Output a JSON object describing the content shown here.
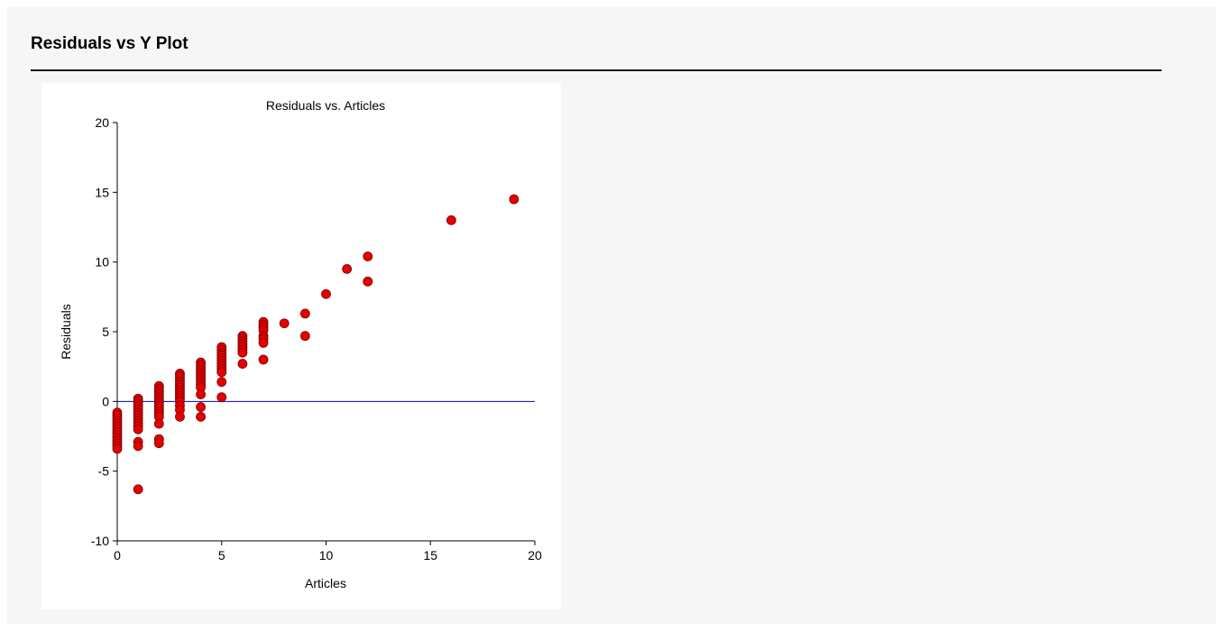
{
  "page": {
    "section_title": "Residuals vs Y Plot"
  },
  "colors": {
    "background": "#f6f6f6",
    "panel": "#ffffff",
    "marker_fill": "#e60000",
    "marker_stroke": "#7a0000",
    "reference_line": "#0000cc"
  },
  "chart_data": {
    "type": "scatter",
    "title": "Residuals vs. Articles",
    "xlabel": "Articles",
    "ylabel": "Residuals",
    "xlim": [
      0,
      20
    ],
    "ylim": [
      -10,
      20
    ],
    "x_ticks": [
      0,
      5,
      10,
      15,
      20
    ],
    "y_ticks": [
      -10,
      -5,
      0,
      5,
      10,
      15,
      20
    ],
    "x_tick_labels": [
      "0",
      "5",
      "10",
      "15",
      "20"
    ],
    "y_tick_labels": [
      "-10",
      "-5",
      "0",
      "5",
      "10",
      "15",
      "20"
    ],
    "grid": false,
    "legend": "none",
    "reference_line_y": 0,
    "series": [
      {
        "points": [
          [
            0,
            -0.8
          ],
          [
            0,
            -1.0
          ],
          [
            0,
            -1.2
          ],
          [
            0,
            -1.4
          ],
          [
            0,
            -1.6
          ],
          [
            0,
            -1.8
          ],
          [
            0,
            -2.0
          ],
          [
            0,
            -2.2
          ],
          [
            0,
            -2.4
          ],
          [
            0,
            -2.6
          ],
          [
            0,
            -2.8
          ],
          [
            0,
            -3.0
          ],
          [
            0,
            -3.2
          ],
          [
            0,
            -3.4
          ],
          [
            1,
            0.2
          ],
          [
            1,
            0.0
          ],
          [
            1,
            -0.2
          ],
          [
            1,
            -0.4
          ],
          [
            1,
            -0.6
          ],
          [
            1,
            -0.8
          ],
          [
            1,
            -1.0
          ],
          [
            1,
            -1.2
          ],
          [
            1,
            -1.4
          ],
          [
            1,
            -1.6
          ],
          [
            1,
            -1.8
          ],
          [
            1,
            -2.0
          ],
          [
            1,
            -2.9
          ],
          [
            1,
            -3.2
          ],
          [
            1,
            -6.3
          ],
          [
            2,
            1.1
          ],
          [
            2,
            0.9
          ],
          [
            2,
            0.7
          ],
          [
            2,
            0.5
          ],
          [
            2,
            0.3
          ],
          [
            2,
            0.1
          ],
          [
            2,
            -0.1
          ],
          [
            2,
            -0.3
          ],
          [
            2,
            -0.5
          ],
          [
            2,
            -0.7
          ],
          [
            2,
            -0.9
          ],
          [
            2,
            -1.1
          ],
          [
            2,
            -1.6
          ],
          [
            2,
            -2.7
          ],
          [
            2,
            -3.0
          ],
          [
            3,
            2.0
          ],
          [
            3,
            1.8
          ],
          [
            3,
            1.6
          ],
          [
            3,
            1.4
          ],
          [
            3,
            1.2
          ],
          [
            3,
            1.0
          ],
          [
            3,
            0.8
          ],
          [
            3,
            0.6
          ],
          [
            3,
            0.4
          ],
          [
            3,
            0.2
          ],
          [
            3,
            0.0
          ],
          [
            3,
            -0.3
          ],
          [
            3,
            -0.6
          ],
          [
            3,
            -1.1
          ],
          [
            4,
            2.8
          ],
          [
            4,
            2.6
          ],
          [
            4,
            2.4
          ],
          [
            4,
            2.2
          ],
          [
            4,
            2.0
          ],
          [
            4,
            1.8
          ],
          [
            4,
            1.6
          ],
          [
            4,
            1.4
          ],
          [
            4,
            1.2
          ],
          [
            4,
            1.0
          ],
          [
            4,
            0.5
          ],
          [
            4,
            -0.4
          ],
          [
            4,
            -1.1
          ],
          [
            5,
            3.9
          ],
          [
            5,
            3.7
          ],
          [
            5,
            3.5
          ],
          [
            5,
            3.3
          ],
          [
            5,
            3.1
          ],
          [
            5,
            2.9
          ],
          [
            5,
            2.7
          ],
          [
            5,
            2.5
          ],
          [
            5,
            2.3
          ],
          [
            5,
            2.1
          ],
          [
            5,
            1.4
          ],
          [
            5,
            0.3
          ],
          [
            6,
            4.7
          ],
          [
            6,
            4.5
          ],
          [
            6,
            4.3
          ],
          [
            6,
            4.1
          ],
          [
            6,
            3.9
          ],
          [
            6,
            3.7
          ],
          [
            6,
            3.5
          ],
          [
            6,
            2.7
          ],
          [
            7,
            5.7
          ],
          [
            7,
            5.5
          ],
          [
            7,
            5.3
          ],
          [
            7,
            5.1
          ],
          [
            7,
            4.7
          ],
          [
            7,
            4.5
          ],
          [
            7,
            4.2
          ],
          [
            7,
            3.0
          ],
          [
            8,
            5.6
          ],
          [
            9,
            6.3
          ],
          [
            9,
            4.7
          ],
          [
            10,
            7.7
          ],
          [
            11,
            9.5
          ],
          [
            12,
            10.4
          ],
          [
            12,
            8.6
          ],
          [
            16,
            13.0
          ],
          [
            19,
            14.5
          ]
        ]
      }
    ]
  }
}
